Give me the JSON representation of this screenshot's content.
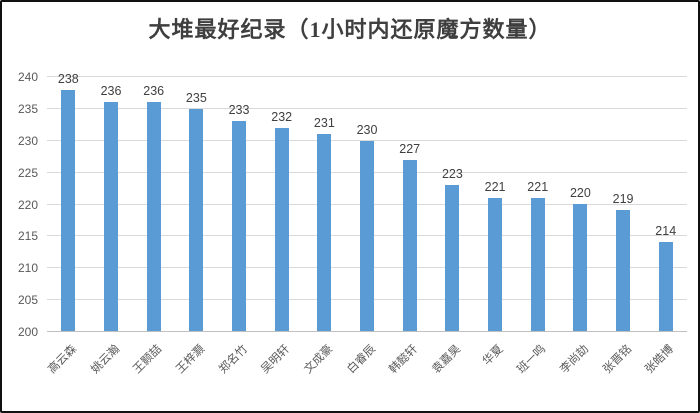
{
  "title": "大堆最好纪录（1小时内还原魔方数量）",
  "chart_data": {
    "type": "bar",
    "title": "大堆最好纪录（1小时内还原魔方数量）",
    "categories": [
      "高云森",
      "姚云瀚",
      "王颢喆",
      "王梓灏",
      "郑名竹",
      "吴明轩",
      "文成豪",
      "白睿辰",
      "韩懿轩",
      "袁嘉昊",
      "华夏",
      "班一鸣",
      "李尚劼",
      "张晋铭",
      "张皓博"
    ],
    "values": [
      238,
      236,
      236,
      235,
      233,
      232,
      231,
      230,
      227,
      223,
      221,
      221,
      220,
      219,
      214
    ],
    "data_labels_shown": true,
    "xlabel": "",
    "ylabel": "",
    "ylim": [
      200,
      240
    ],
    "yticks": [
      200,
      205,
      210,
      215,
      220,
      225,
      230,
      235,
      240
    ],
    "grid": "horizontal",
    "legend_position": "none",
    "colors": {
      "bar": "#5b9bd5",
      "gridline": "#d9d9d9",
      "axis_line": "#bfbfbf",
      "title_text": "#3f3f3f",
      "tick_text": "#595959",
      "data_label_text": "#404040"
    }
  }
}
